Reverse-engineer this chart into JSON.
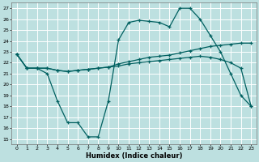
{
  "xlabel": "Humidex (Indice chaleur)",
  "bg_color": "#bde0e0",
  "grid_color": "#ffffff",
  "line_color": "#006060",
  "xlim": [
    -0.5,
    23.5
  ],
  "ylim": [
    14.5,
    27.5
  ],
  "yticks": [
    15,
    16,
    17,
    18,
    19,
    20,
    21,
    22,
    23,
    24,
    25,
    26,
    27
  ],
  "xticks": [
    0,
    1,
    2,
    3,
    4,
    5,
    6,
    7,
    8,
    9,
    10,
    11,
    12,
    13,
    14,
    15,
    16,
    17,
    18,
    19,
    20,
    21,
    22,
    23
  ],
  "s1_x": [
    0,
    1,
    2,
    3,
    4,
    5,
    6,
    7,
    8,
    9,
    10,
    11,
    12,
    13,
    14,
    15,
    16,
    17,
    18,
    19,
    20,
    21,
    22,
    23
  ],
  "s1_y": [
    22.8,
    21.5,
    21.5,
    21.0,
    18.5,
    16.5,
    16.5,
    15.2,
    15.2,
    18.5,
    24.1,
    25.7,
    25.9,
    25.8,
    25.7,
    25.3,
    27.0,
    27.0,
    26.0,
    24.5,
    23.0,
    21.0,
    19.0,
    18.0
  ],
  "s2_x": [
    0,
    1,
    2,
    3,
    4,
    5,
    6,
    7,
    8,
    9,
    10,
    11,
    12,
    13,
    14,
    15,
    16,
    17,
    18,
    19,
    20,
    21,
    22,
    23
  ],
  "s2_y": [
    22.8,
    21.5,
    21.5,
    21.5,
    21.3,
    21.2,
    21.3,
    21.4,
    21.5,
    21.6,
    21.9,
    22.1,
    22.3,
    22.5,
    22.6,
    22.7,
    22.9,
    23.1,
    23.3,
    23.5,
    23.6,
    23.7,
    23.8,
    23.8
  ],
  "s3_x": [
    0,
    1,
    2,
    3,
    4,
    5,
    6,
    7,
    8,
    9,
    10,
    11,
    12,
    13,
    14,
    15,
    16,
    17,
    18,
    19,
    20,
    21,
    22,
    23
  ],
  "s3_y": [
    22.8,
    21.5,
    21.5,
    21.5,
    21.3,
    21.2,
    21.3,
    21.4,
    21.5,
    21.6,
    21.7,
    21.9,
    22.0,
    22.1,
    22.2,
    22.3,
    22.4,
    22.5,
    22.6,
    22.5,
    22.3,
    22.0,
    21.5,
    18.0
  ]
}
